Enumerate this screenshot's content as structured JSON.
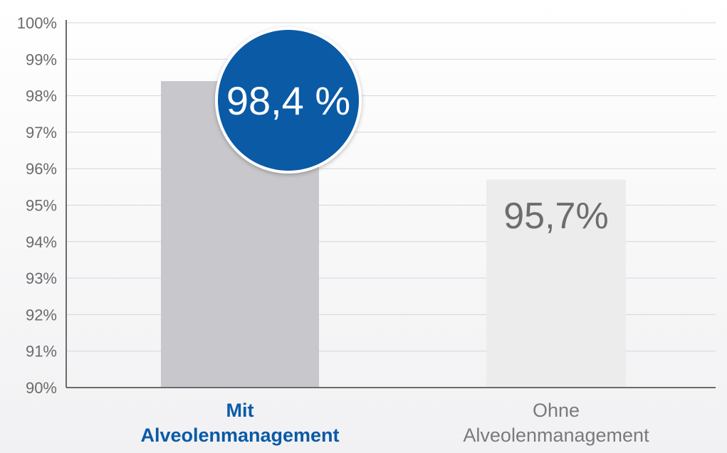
{
  "chart_data": {
    "type": "bar",
    "title": "",
    "xlabel": "",
    "ylabel": "",
    "ylim": [
      90,
      100
    ],
    "yticks": [
      90,
      91,
      92,
      93,
      94,
      95,
      96,
      97,
      98,
      99,
      100
    ],
    "ytick_labels": [
      "90%",
      "91%",
      "92%",
      "93%",
      "94%",
      "95%",
      "96%",
      "97%",
      "98%",
      "99%",
      "100%"
    ],
    "grid": true,
    "categories": [
      {
        "line1": "Mit",
        "line2": "Alveolenmanagement"
      },
      {
        "line1": "Ohne",
        "line2": "Alveolenmanagement"
      }
    ],
    "values": [
      98.4,
      95.7
    ],
    "value_labels": [
      "98,4 %",
      "95,7%"
    ],
    "colors": {
      "bar_mit": "#c8c8cc",
      "bar_ohne": "#ececec",
      "bubble": "#0a5aa6",
      "highlight_label": "#0a5aa6",
      "grid": "#d6d6d6"
    }
  }
}
